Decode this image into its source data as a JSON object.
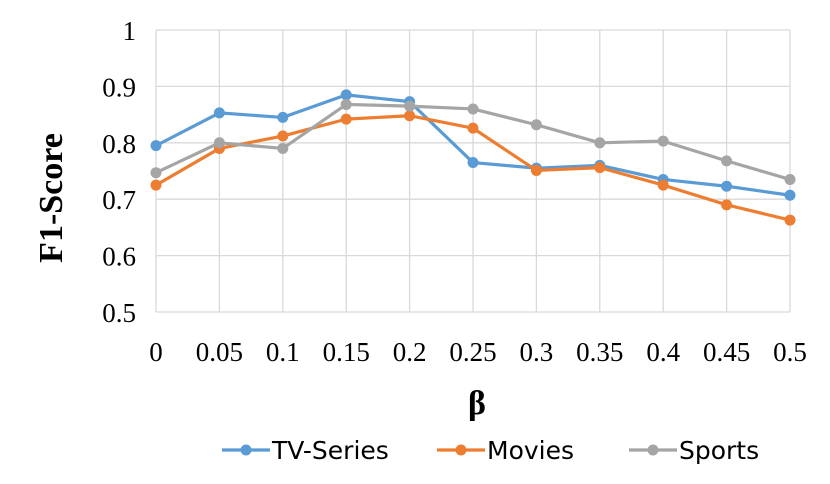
{
  "chart_data": {
    "type": "line",
    "xlabel": "β",
    "ylabel": "F1-Score",
    "categories": [
      "0",
      "0.05",
      "0.1",
      "0.15",
      "0.2",
      "0.25",
      "0.3",
      "0.35",
      "0.4",
      "0.45",
      "0.5"
    ],
    "ylim": [
      0.5,
      1
    ],
    "yticks": [
      "0.5",
      "0.6",
      "0.7",
      "0.8",
      "0.9",
      "1"
    ],
    "grid": true,
    "legend_position": "bottom",
    "series": [
      {
        "name": "TV-Series",
        "color": "#5B9BD5",
        "values": [
          0.795,
          0.853,
          0.845,
          0.885,
          0.873,
          0.765,
          0.755,
          0.76,
          0.735,
          0.723,
          0.707
        ]
      },
      {
        "name": "Movies",
        "color": "#ED7D31",
        "values": [
          0.725,
          0.79,
          0.812,
          0.842,
          0.848,
          0.826,
          0.751,
          0.756,
          0.725,
          0.69,
          0.663
        ]
      },
      {
        "name": "Sports",
        "color": "#A5A5A5",
        "values": [
          0.747,
          0.8,
          0.79,
          0.868,
          0.865,
          0.86,
          0.832,
          0.8,
          0.803,
          0.768,
          0.735
        ]
      }
    ]
  }
}
